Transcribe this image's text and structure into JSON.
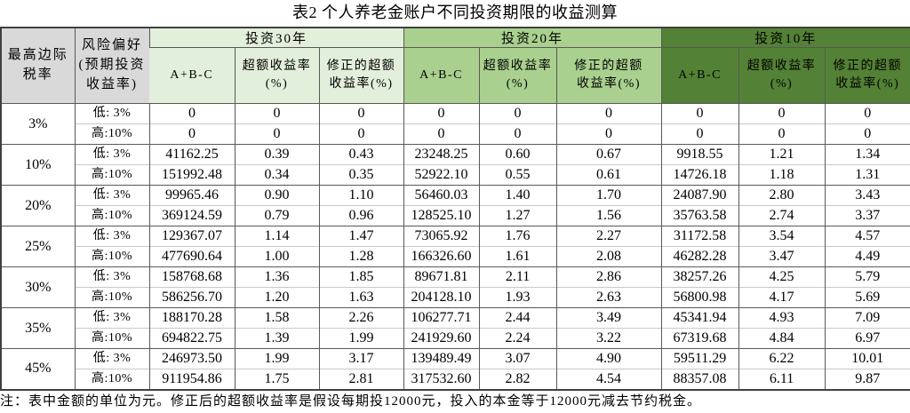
{
  "title": "表2  个人养老金账户不同投资期限的收益测算",
  "footnote": "注：表中金额的单位为元。修正后的超额收益率是假设每期投12000元，投入的本金等于12000元减去节约税金。",
  "colors": {
    "header_gray": "#d9d9d9",
    "group_30yr": "#e2efda",
    "group_20yr": "#a9d08e",
    "group_10yr": "#538135",
    "border_dark": "#595959",
    "border_light": "#c9c9c9",
    "outer_border": "#404040"
  },
  "header": {
    "tax_col": "最高边际\n税率",
    "risk_col": "风险偏好\n(预期投资\n收益率)",
    "groups": [
      {
        "label": "投资30年",
        "subcols": [
          "A+B-C",
          "超额收益率\n(%)",
          "修正的超额\n收益率(%)"
        ]
      },
      {
        "label": "投资20年",
        "subcols": [
          "A+B-C",
          "超额收益率\n(%)",
          "修正的超额\n收益率(%)"
        ]
      },
      {
        "label": "投资10年",
        "subcols": [
          "A+B-C",
          "超额收益率\n(%)",
          "修正的超额\n收益率(%)"
        ]
      }
    ]
  },
  "body": {
    "groups": [
      {
        "tax": "3%",
        "rows": [
          {
            "risk": "低: 3%",
            "values": [
              "0",
              "0",
              "0",
              "0",
              "0",
              "0",
              "0",
              "0",
              "0"
            ]
          },
          {
            "risk": "高:10%",
            "values": [
              "0",
              "0",
              "0",
              "0",
              "0",
              "0",
              "0",
              "0",
              "0"
            ]
          }
        ]
      },
      {
        "tax": "10%",
        "rows": [
          {
            "risk": "低: 3%",
            "values": [
              "41162.25",
              "0.39",
              "0.43",
              "23248.25",
              "0.60",
              "0.67",
              "9918.55",
              "1.21",
              "1.34"
            ]
          },
          {
            "risk": "高:10%",
            "values": [
              "151992.48",
              "0.34",
              "0.35",
              "52922.10",
              "0.55",
              "0.61",
              "14726.18",
              "1.18",
              "1.31"
            ]
          }
        ]
      },
      {
        "tax": "20%",
        "rows": [
          {
            "risk": "低: 3%",
            "values": [
              "99965.46",
              "0.90",
              "1.10",
              "56460.03",
              "1.40",
              "1.70",
              "24087.90",
              "2.80",
              "3.43"
            ]
          },
          {
            "risk": "高:10%",
            "values": [
              "369124.59",
              "0.79",
              "0.96",
              "128525.10",
              "1.27",
              "1.56",
              "35763.58",
              "2.74",
              "3.37"
            ]
          }
        ]
      },
      {
        "tax": "25%",
        "rows": [
          {
            "risk": "低: 3%",
            "values": [
              "129367.07",
              "1.14",
              "1.47",
              "73065.92",
              "1.76",
              "2.27",
              "31172.58",
              "3.54",
              "4.57"
            ]
          },
          {
            "risk": "高:10%",
            "values": [
              "477690.64",
              "1.00",
              "1.28",
              "166326.60",
              "1.61",
              "2.08",
              "46282.28",
              "3.47",
              "4.49"
            ]
          }
        ]
      },
      {
        "tax": "30%",
        "rows": [
          {
            "risk": "低: 3%",
            "values": [
              "158768.68",
              "1.36",
              "1.85",
              "89671.81",
              "2.11",
              "2.86",
              "38257.26",
              "4.25",
              "5.79"
            ]
          },
          {
            "risk": "高:10%",
            "values": [
              "586256.70",
              "1.20",
              "1.63",
              "204128.10",
              "1.93",
              "2.63",
              "56800.98",
              "4.17",
              "5.69"
            ]
          }
        ]
      },
      {
        "tax": "35%",
        "rows": [
          {
            "risk": "低: 3%",
            "values": [
              "188170.28",
              "1.58",
              "2.26",
              "106277.71",
              "2.44",
              "3.49",
              "45341.94",
              "4.93",
              "7.09"
            ]
          },
          {
            "risk": "高:10%",
            "values": [
              "694822.75",
              "1.39",
              "1.99",
              "241929.60",
              "2.24",
              "3.22",
              "67319.68",
              "4.84",
              "6.97"
            ]
          }
        ]
      },
      {
        "tax": "45%",
        "rows": [
          {
            "risk": "低: 3%",
            "values": [
              "246973.50",
              "1.99",
              "3.17",
              "139489.49",
              "3.07",
              "4.90",
              "59511.29",
              "6.22",
              "10.01"
            ]
          },
          {
            "risk": "高:10%",
            "values": [
              "911954.86",
              "1.75",
              "2.81",
              "317532.60",
              "2.82",
              "4.54",
              "88357.08",
              "6.11",
              "9.87"
            ]
          }
        ]
      }
    ]
  }
}
